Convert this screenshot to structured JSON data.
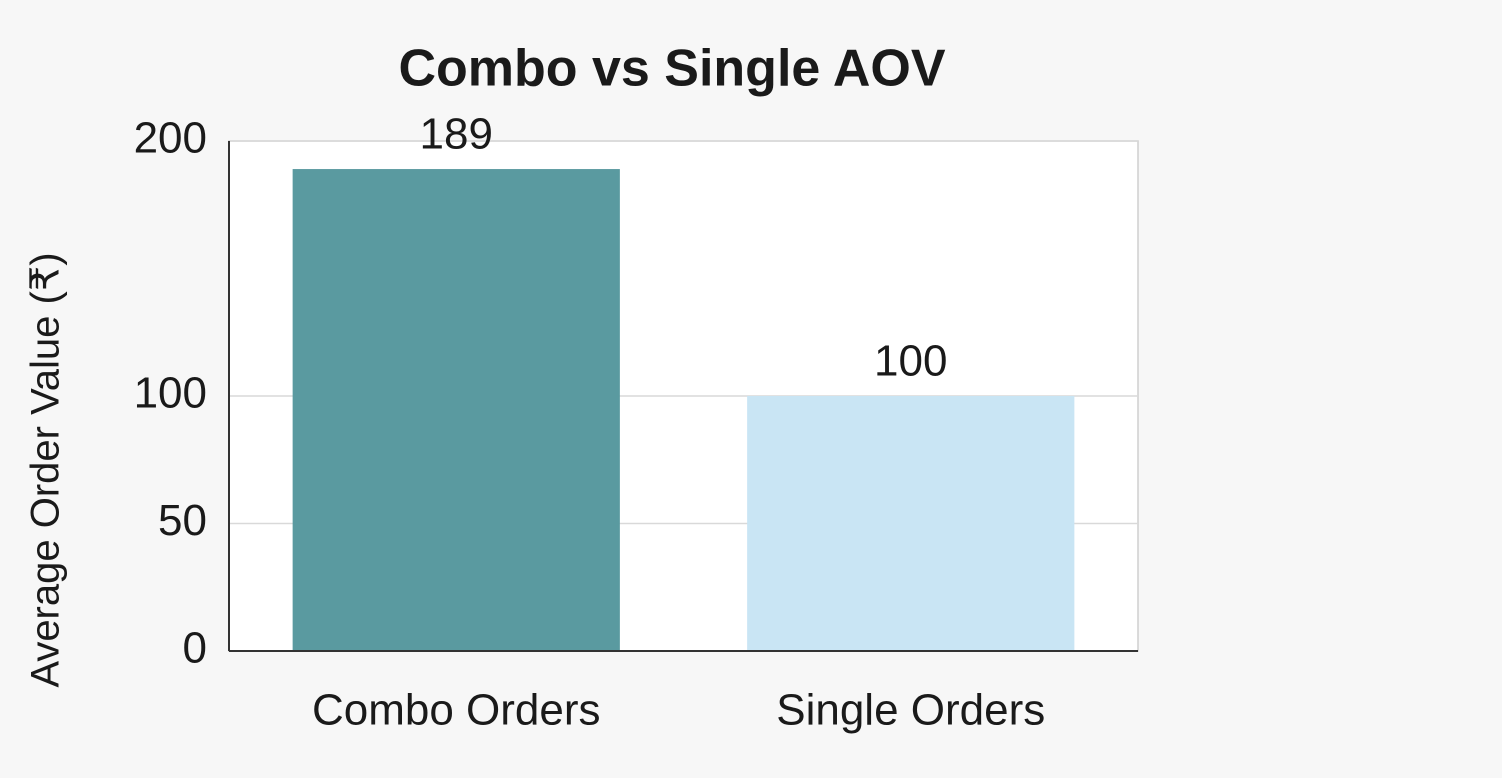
{
  "chart_data": {
    "type": "bar",
    "title": "Combo vs Single AOV",
    "y_label": "Average Order Value (₹)",
    "categories": [
      "Combo Orders",
      "Single Orders"
    ],
    "values": [
      189,
      100
    ],
    "colors": [
      "#5a9aa0",
      "#c9e5f4"
    ],
    "ylim": [
      0,
      200
    ],
    "yticks": [
      0,
      50,
      100,
      200
    ],
    "grid": true
  }
}
